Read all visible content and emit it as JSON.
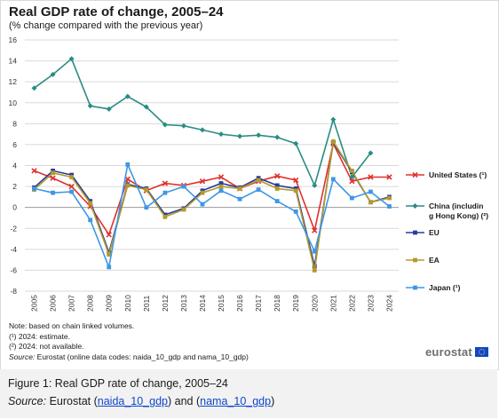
{
  "header": {
    "title": "Real GDP rate of change, 2005–24",
    "subtitle": "(% change compared with the previous year)"
  },
  "notes": {
    "line1": "Note: based on chain linked volumes.",
    "line2": "(¹) 2024: estimate.",
    "line3": "(²) 2024: not available.",
    "source_label": "Source:",
    "source_text": " Eurostat (online data codes: naida_10_gdp and nama_10_gdp)"
  },
  "logo": {
    "text": "eurostat"
  },
  "caption": {
    "figure": "Figure 1: Real GDP rate of change, 2005–24",
    "source_label": "Source:",
    "source_pre": " Eurostat (",
    "link1": "naida_10_gdp",
    "mid": ") and (",
    "link2": "nama_10_gdp",
    "post": ")"
  },
  "chart_data": {
    "type": "line",
    "x": [
      "2005",
      "2006",
      "2007",
      "2008",
      "2009",
      "2010",
      "2011",
      "2012",
      "2013",
      "2014",
      "2015",
      "2016",
      "2017",
      "2018",
      "2019",
      "2020",
      "2021",
      "2022",
      "2023",
      "2024"
    ],
    "ylim": [
      -8,
      16
    ],
    "yticks": [
      "16",
      "14",
      "12",
      "10",
      "8",
      "6",
      "4",
      "2",
      "0",
      "-2",
      "-4",
      "-6",
      "-8"
    ],
    "grid": true,
    "legend_position": "right",
    "series": [
      {
        "name": "United States (¹)",
        "color": "#e0312c",
        "marker": "x",
        "values": [
          3.5,
          2.8,
          2.0,
          0.1,
          -2.6,
          2.7,
          1.6,
          2.3,
          2.1,
          2.5,
          2.9,
          1.8,
          2.5,
          3.0,
          2.6,
          -2.2,
          6.1,
          2.5,
          2.9,
          2.9
        ]
      },
      {
        "name": "China (including Hong Kong) (²)",
        "color": "#2a8c84",
        "marker": "diamond",
        "values": [
          11.4,
          12.7,
          14.2,
          9.7,
          9.4,
          10.6,
          9.6,
          7.9,
          7.8,
          7.4,
          7.0,
          6.8,
          6.9,
          6.7,
          6.1,
          2.1,
          8.4,
          2.9,
          5.2,
          null
        ]
      },
      {
        "name": "EU",
        "color": "#2a3a9c",
        "marker": "square",
        "values": [
          1.9,
          3.5,
          3.1,
          0.6,
          -4.3,
          2.2,
          1.8,
          -0.7,
          -0.1,
          1.6,
          2.3,
          1.9,
          2.8,
          2.1,
          1.8,
          -5.6,
          6.2,
          3.4,
          0.5,
          1.0
        ]
      },
      {
        "name": "EA",
        "color": "#b39b2a",
        "marker": "square",
        "values": [
          1.7,
          3.3,
          2.9,
          0.4,
          -4.5,
          2.1,
          1.7,
          -0.9,
          -0.2,
          1.4,
          2.0,
          1.8,
          2.6,
          1.8,
          1.6,
          -6.0,
          6.3,
          3.5,
          0.5,
          0.9
        ]
      },
      {
        "name": "Japan (¹)",
        "color": "#3e97e6",
        "marker": "square",
        "values": [
          1.8,
          1.4,
          1.5,
          -1.2,
          -5.7,
          4.1,
          0.0,
          1.4,
          2.0,
          0.3,
          1.6,
          0.8,
          1.7,
          0.6,
          -0.4,
          -4.2,
          2.7,
          0.9,
          1.5,
          0.1
        ]
      }
    ]
  }
}
